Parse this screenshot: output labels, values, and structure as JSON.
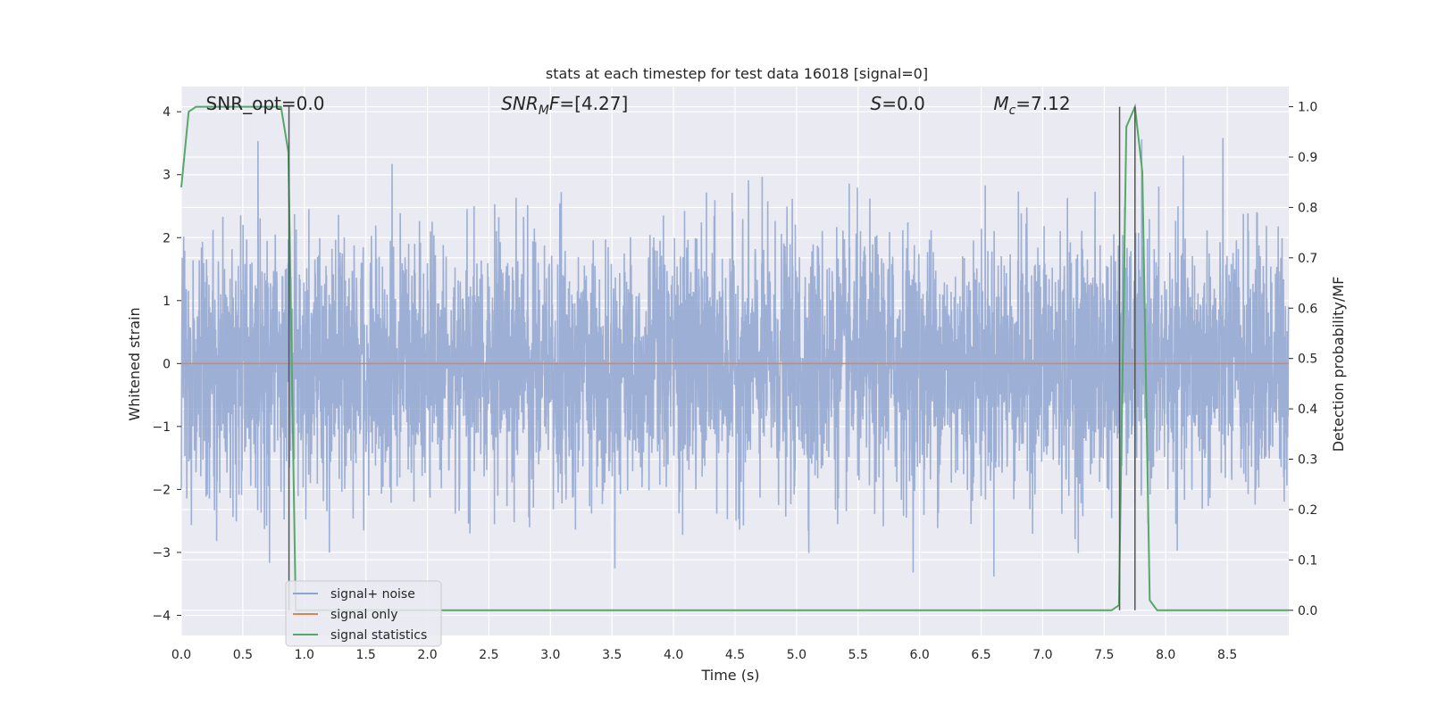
{
  "chart_data": {
    "type": "line",
    "title": "stats at each timestep for test data 16018 [signal=0]",
    "xlabel": "Time (s)",
    "ylabel": "Whitened strain",
    "ylabel_right": "Detection probability/MF",
    "xlim": [
      0,
      9.0
    ],
    "ylim": [
      -4.32,
      4.4
    ],
    "ylim_right": [
      -0.05,
      1.04
    ],
    "x_ticks": [
      0.0,
      0.5,
      1.0,
      1.5,
      2.0,
      2.5,
      3.0,
      3.5,
      4.0,
      4.5,
      5.0,
      5.5,
      6.0,
      6.5,
      7.0,
      7.5,
      8.0,
      8.5
    ],
    "x_tick_labels": [
      "0.0",
      "0.5",
      "1.0",
      "1.5",
      "2.0",
      "2.5",
      "3.0",
      "3.5",
      "4.0",
      "4.5",
      "5.0",
      "5.5",
      "6.0",
      "6.5",
      "7.0",
      "7.5",
      "8.0",
      "8.5"
    ],
    "y_ticks": [
      -4,
      -3,
      -2,
      -1,
      0,
      1,
      2,
      3,
      4
    ],
    "y_tick_labels": [
      "−4",
      "−3",
      "−2",
      "−1",
      "0",
      "1",
      "2",
      "3",
      "4"
    ],
    "y_right_ticks": [
      0.0,
      0.1,
      0.2,
      0.3,
      0.4,
      0.5,
      0.6,
      0.7,
      0.8,
      0.9,
      1.0
    ],
    "y_right_tick_labels": [
      "0.0",
      "0.1",
      "0.2",
      "0.3",
      "0.4",
      "0.5",
      "0.6",
      "0.7",
      "0.8",
      "0.9",
      "1.0"
    ],
    "grid": true,
    "legend_position": "lower-left",
    "series": [
      {
        "name": "signal+ noise",
        "color": "#8fa5cf",
        "axis": "left",
        "description_values": "whitened noise, roughly within [-3.6, 4.0]",
        "sample_rate_hz": 512,
        "duration_s": 9.0
      },
      {
        "name": "signal only",
        "color": "#dd8452",
        "axis": "left",
        "x": [
          0.0,
          9.0
        ],
        "values": [
          0.0,
          0.0
        ]
      },
      {
        "name": "signal statistics",
        "color": "#55a868",
        "axis": "right",
        "x": [
          0.0,
          0.06,
          0.12,
          0.25,
          0.5,
          0.75,
          0.81,
          0.87,
          0.93,
          1.0,
          2.0,
          4.0,
          6.0,
          7.0,
          7.56,
          7.62,
          7.68,
          7.75,
          7.81,
          7.87,
          7.93,
          8.0,
          8.36,
          8.5,
          9.0
        ],
        "values": [
          0.84,
          0.99,
          1.0,
          1.0,
          1.0,
          1.0,
          1.0,
          0.91,
          0.0,
          0.0,
          0.0,
          0.0,
          0.0,
          0.0,
          0.0,
          0.01,
          0.96,
          1.0,
          0.87,
          0.02,
          0.0,
          0.0,
          0.0,
          0.0,
          0.0
        ]
      }
    ],
    "vertical_lines": [
      {
        "x": 0.875,
        "y_top": 1.0,
        "y_bottom": 0.0,
        "color": "#555555"
      },
      {
        "x": 7.625,
        "y_top": 1.0,
        "y_bottom": 0.0,
        "color": "#555555"
      },
      {
        "x": 7.75,
        "y_top": 1.0,
        "y_bottom": 0.0,
        "color": "#555555"
      }
    ],
    "annotations": [
      {
        "x": 0.2,
        "text_parts": [
          {
            "t": "SNR_opt=0.0"
          }
        ]
      },
      {
        "x": 2.6,
        "text_parts": [
          {
            "t": "SNR",
            "italic": true
          },
          {
            "t": "M",
            "italic": true,
            "sub": true
          },
          {
            "t": "F",
            "italic": true
          },
          {
            "t": "=[4.27]"
          }
        ]
      },
      {
        "x": 5.6,
        "text_parts": [
          {
            "t": "S",
            "italic": true
          },
          {
            "t": "=0.0"
          }
        ]
      },
      {
        "x": 6.6,
        "text_parts": [
          {
            "t": "M",
            "italic": true
          },
          {
            "t": "c",
            "italic": true,
            "sub": true
          },
          {
            "t": "=7.12"
          }
        ]
      }
    ],
    "colors": {
      "plot_background": "#eaeaf2",
      "grid": "#ffffff",
      "text": "#262626"
    }
  }
}
